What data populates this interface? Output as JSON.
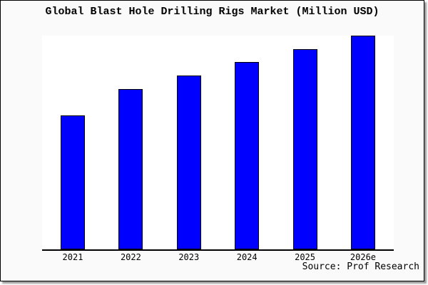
{
  "card": {
    "background": "#fafafa",
    "border_color": "#000000"
  },
  "chart_data": {
    "type": "bar",
    "title": "Global Blast Hole Drilling Rigs Market (Million USD)",
    "categories": [
      "2021",
      "2022",
      "2023",
      "2024",
      "2025",
      "2026e"
    ],
    "values": [
      62.8,
      75.1,
      81.5,
      87.7,
      93.7,
      100
    ],
    "values_note": "relative bar heights in percent of tallest bar; chart displays no y-axis tick values",
    "xlabel": "",
    "ylabel": "",
    "ylim": [
      0,
      100
    ],
    "grid": false,
    "legend": "none",
    "y_ticks_shown": false,
    "bar_color": "#0000ff",
    "bar_edge_color": "#000000",
    "plot_background": "#ffffff",
    "source": "Source: Prof Research"
  }
}
